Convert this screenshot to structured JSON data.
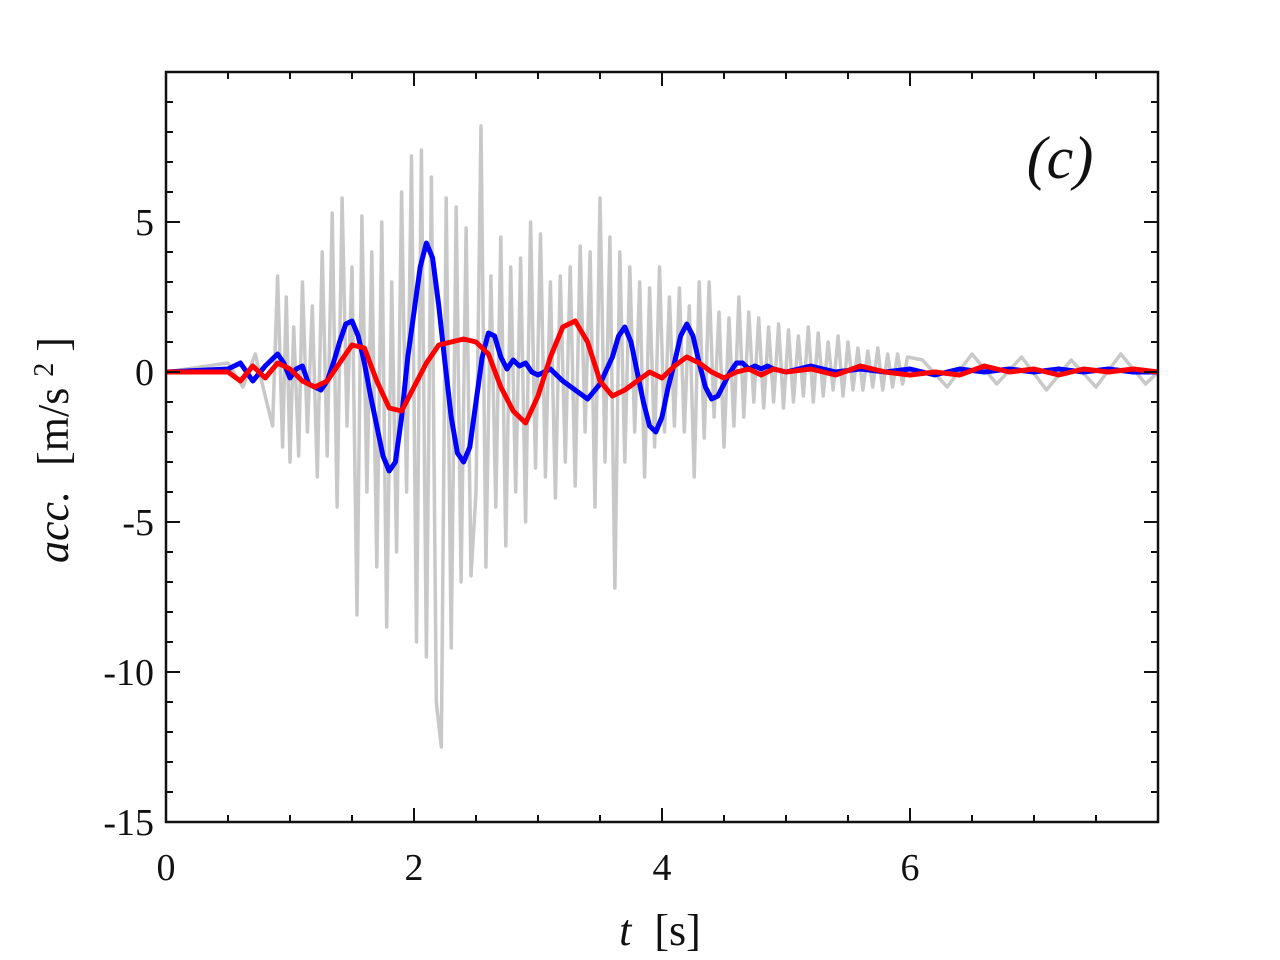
{
  "chart_data": {
    "type": "line",
    "panel_label": "(c)",
    "xlabel": {
      "var": "t",
      "unit": "[s]"
    },
    "ylabel": {
      "var": "acc.",
      "unit_pre": "[m/s",
      "unit_sup": "2",
      "unit_post": "]"
    },
    "xlim": [
      0,
      8
    ],
    "ylim": [
      -15,
      10
    ],
    "x_ticks": [
      0,
      2,
      4,
      6
    ],
    "x_tick_labels": [
      "0",
      "2",
      "4",
      "6"
    ],
    "y_ticks": [
      -15,
      -10,
      -5,
      0,
      5
    ],
    "y_tick_labels": [
      "-15",
      "-10",
      "-5",
      "0",
      "5"
    ],
    "grid": false,
    "series": [
      {
        "color": "#c8c8c8",
        "x": [
          0,
          0.5,
          0.62,
          0.72,
          0.8,
          0.86,
          0.9,
          0.94,
          0.97,
          1.0,
          1.03,
          1.07,
          1.1,
          1.14,
          1.18,
          1.22,
          1.26,
          1.3,
          1.34,
          1.38,
          1.42,
          1.46,
          1.5,
          1.54,
          1.58,
          1.62,
          1.66,
          1.7,
          1.74,
          1.78,
          1.82,
          1.86,
          1.9,
          1.94,
          1.98,
          2.02,
          2.06,
          2.1,
          2.14,
          2.18,
          2.22,
          2.26,
          2.3,
          2.34,
          2.38,
          2.42,
          2.46,
          2.5,
          2.54,
          2.58,
          2.62,
          2.66,
          2.7,
          2.74,
          2.78,
          2.82,
          2.86,
          2.9,
          2.94,
          2.98,
          3.02,
          3.06,
          3.1,
          3.14,
          3.18,
          3.22,
          3.26,
          3.3,
          3.34,
          3.38,
          3.42,
          3.46,
          3.5,
          3.54,
          3.58,
          3.62,
          3.66,
          3.7,
          3.74,
          3.78,
          3.82,
          3.86,
          3.9,
          3.94,
          3.98,
          4.02,
          4.06,
          4.1,
          4.14,
          4.18,
          4.22,
          4.26,
          4.3,
          4.34,
          4.38,
          4.42,
          4.46,
          4.5,
          4.54,
          4.58,
          4.62,
          4.66,
          4.7,
          4.74,
          4.78,
          4.82,
          4.86,
          4.9,
          4.94,
          4.98,
          5.02,
          5.06,
          5.1,
          5.14,
          5.18,
          5.22,
          5.26,
          5.3,
          5.34,
          5.38,
          5.42,
          5.46,
          5.5,
          5.54,
          5.58,
          5.62,
          5.66,
          5.7,
          5.74,
          5.78,
          5.82,
          5.86,
          5.9,
          5.94,
          5.98,
          6.1,
          6.3,
          6.5,
          6.7,
          6.9,
          7.1,
          7.3,
          7.5,
          7.7,
          7.9,
          8.0
        ],
        "y": [
          0,
          0.3,
          -0.5,
          0.6,
          -0.8,
          -1.8,
          3.2,
          -2.5,
          2.5,
          -3.0,
          1.5,
          -2.8,
          3.0,
          -2.0,
          2.2,
          -3.5,
          4.0,
          -2.8,
          5.3,
          -4.5,
          5.8,
          -1.8,
          3.5,
          -8.1,
          5.2,
          -4.0,
          4.0,
          -6.5,
          5.0,
          -8.5,
          3.0,
          -6.0,
          6.0,
          -4.0,
          7.2,
          -9.0,
          7.4,
          -9.5,
          6.5,
          -11.0,
          -12.5,
          5.8,
          -9.2,
          5.5,
          -7.0,
          4.8,
          -6.8,
          -4.0,
          8.2,
          -6.5,
          3.2,
          -4.5,
          4.5,
          -5.8,
          3.5,
          -4.0,
          3.8,
          -5.0,
          5.0,
          -3.2,
          4.6,
          -3.5,
          3.0,
          -4.2,
          3.2,
          -3.0,
          3.5,
          -3.8,
          4.2,
          -2.0,
          4.0,
          -4.5,
          5.8,
          -3.0,
          4.5,
          -7.2,
          4.0,
          -3.0,
          3.5,
          -2.0,
          3.0,
          -3.5,
          2.8,
          -2.5,
          3.5,
          -2.0,
          2.5,
          -1.8,
          2.8,
          -2.0,
          2.2,
          -3.5,
          3.0,
          -2.2,
          3.0,
          -1.5,
          2.0,
          -2.5,
          1.8,
          -1.8,
          2.5,
          -1.5,
          2.0,
          -1.0,
          1.8,
          -1.2,
          1.5,
          -1.0,
          1.6,
          -1.2,
          1.4,
          -1.0,
          1.2,
          -0.8,
          1.5,
          -1.0,
          1.3,
          -0.8,
          1.0,
          -0.6,
          1.2,
          -0.8,
          1.0,
          -0.6,
          0.8,
          -0.6,
          0.7,
          -0.5,
          0.8,
          -0.6,
          0.6,
          -0.5,
          0.6,
          -0.4,
          0.5,
          0.4,
          -0.5,
          0.6,
          -0.4,
          0.5,
          -0.6,
          0.4,
          -0.5,
          0.6,
          -0.4,
          0.0
        ]
      },
      {
        "color": "#0000ff",
        "x": [
          0,
          0.5,
          0.6,
          0.7,
          0.8,
          0.9,
          0.95,
          1.0,
          1.05,
          1.1,
          1.15,
          1.2,
          1.25,
          1.3,
          1.35,
          1.4,
          1.45,
          1.5,
          1.55,
          1.6,
          1.65,
          1.7,
          1.75,
          1.8,
          1.85,
          1.9,
          1.95,
          2.0,
          2.05,
          2.1,
          2.15,
          2.2,
          2.25,
          2.3,
          2.35,
          2.4,
          2.45,
          2.5,
          2.55,
          2.6,
          2.65,
          2.7,
          2.75,
          2.8,
          2.85,
          2.9,
          2.95,
          3.0,
          3.1,
          3.2,
          3.3,
          3.4,
          3.5,
          3.6,
          3.65,
          3.7,
          3.75,
          3.8,
          3.85,
          3.9,
          3.95,
          4.0,
          4.05,
          4.1,
          4.15,
          4.2,
          4.25,
          4.3,
          4.35,
          4.4,
          4.45,
          4.5,
          4.55,
          4.6,
          4.65,
          4.7,
          4.75,
          4.8,
          4.85,
          4.9,
          5.0,
          5.2,
          5.4,
          5.6,
          5.8,
          6.0,
          6.2,
          6.4,
          6.6,
          6.8,
          7.0,
          7.2,
          7.4,
          7.6,
          7.8,
          8.0
        ],
        "y": [
          0,
          0.1,
          0.3,
          -0.3,
          0.2,
          0.6,
          0.3,
          -0.2,
          0.1,
          0.2,
          -0.4,
          -0.5,
          -0.6,
          -0.3,
          0.3,
          1.0,
          1.6,
          1.7,
          1.2,
          0.3,
          -0.8,
          -1.8,
          -2.8,
          -3.3,
          -3.0,
          -1.5,
          0.5,
          2.0,
          3.5,
          4.3,
          3.8,
          2.2,
          0.3,
          -1.5,
          -2.7,
          -3.0,
          -2.5,
          -1.0,
          0.5,
          1.3,
          1.2,
          0.5,
          0.1,
          0.4,
          0.2,
          0.3,
          0.0,
          -0.1,
          0.1,
          -0.3,
          -0.6,
          -0.9,
          -0.4,
          0.5,
          1.2,
          1.5,
          1.0,
          0.0,
          -1.0,
          -1.8,
          -2.0,
          -1.5,
          -0.5,
          0.3,
          1.2,
          1.6,
          1.2,
          0.3,
          -0.5,
          -0.9,
          -0.8,
          -0.4,
          0.0,
          0.3,
          0.3,
          0.1,
          0.2,
          0.1,
          0.2,
          0.1,
          0.0,
          0.2,
          0.0,
          0.1,
          0.0,
          0.1,
          -0.1,
          0.1,
          0.0,
          0.1,
          0.0,
          0.1,
          0.0,
          0.1,
          0.0,
          0.0
        ]
      },
      {
        "color": "#ff0000",
        "x": [
          0,
          0.5,
          0.6,
          0.7,
          0.8,
          0.9,
          1.0,
          1.1,
          1.2,
          1.3,
          1.4,
          1.5,
          1.6,
          1.7,
          1.8,
          1.9,
          2.0,
          2.1,
          2.2,
          2.3,
          2.4,
          2.5,
          2.6,
          2.7,
          2.8,
          2.9,
          3.0,
          3.1,
          3.2,
          3.3,
          3.4,
          3.5,
          3.6,
          3.7,
          3.8,
          3.9,
          4.0,
          4.1,
          4.2,
          4.3,
          4.4,
          4.5,
          4.6,
          4.7,
          4.8,
          4.9,
          5.0,
          5.2,
          5.4,
          5.6,
          5.8,
          6.0,
          6.2,
          6.4,
          6.6,
          6.8,
          7.0,
          7.2,
          7.4,
          7.6,
          7.8,
          8.0
        ],
        "y": [
          0,
          0.0,
          -0.3,
          0.2,
          -0.2,
          0.3,
          0.1,
          -0.3,
          -0.5,
          -0.3,
          0.3,
          0.9,
          0.8,
          -0.3,
          -1.2,
          -1.3,
          -0.5,
          0.3,
          0.9,
          1.0,
          1.1,
          1.0,
          0.6,
          -0.5,
          -1.3,
          -1.7,
          -0.8,
          0.5,
          1.5,
          1.7,
          1.0,
          -0.3,
          -0.8,
          -0.6,
          -0.3,
          0.0,
          -0.2,
          0.2,
          0.5,
          0.3,
          0.0,
          -0.2,
          0.0,
          0.1,
          -0.1,
          0.1,
          0.0,
          0.1,
          -0.1,
          0.2,
          0.0,
          -0.1,
          0.0,
          -0.1,
          0.2,
          0.0,
          0.1,
          -0.1,
          0.1,
          0.0,
          0.1,
          0.0
        ]
      }
    ]
  }
}
